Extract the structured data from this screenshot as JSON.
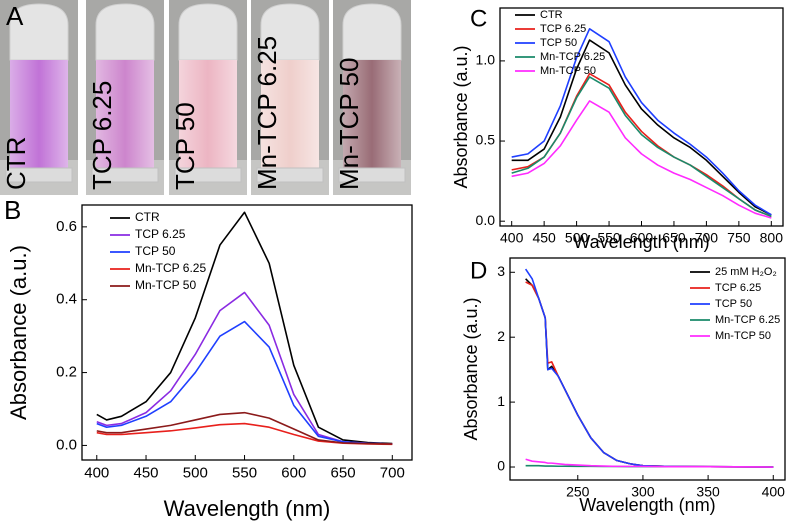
{
  "photo_panel": {
    "label": "A",
    "vials": [
      "CTR",
      "TCP 6.25",
      "TCP 50",
      "Mn-TCP 6.25",
      "Mn-TCP 50"
    ]
  },
  "chart_data": [
    {
      "type": "line",
      "label": "B",
      "x_label": "Wavelength (nm)",
      "y_label": "Absorbance (a.u.)",
      "x": [
        400,
        410,
        425,
        450,
        475,
        500,
        525,
        550,
        575,
        600,
        625,
        650,
        675,
        700
      ],
      "xlim": [
        385,
        720
      ],
      "xticks": [
        400,
        450,
        500,
        550,
        600,
        650,
        700
      ],
      "ylim": [
        -0.04,
        0.66
      ],
      "yticks": [
        {
          "value": 0,
          "label": "0.0"
        },
        0.2,
        0.4,
        0.6
      ],
      "series": [
        {
          "name": "CTR",
          "color": "#000000",
          "values": [
            0.085,
            0.07,
            0.08,
            0.12,
            0.2,
            0.35,
            0.55,
            0.64,
            0.5,
            0.22,
            0.05,
            0.015,
            0.008,
            0.005
          ]
        },
        {
          "name": "TCP 6.25",
          "color": "#8a2be2",
          "values": [
            0.065,
            0.055,
            0.06,
            0.09,
            0.15,
            0.25,
            0.37,
            0.42,
            0.33,
            0.14,
            0.03,
            0.01,
            0.006,
            0.004
          ]
        },
        {
          "name": "TCP 50",
          "color": "#1f3fff",
          "values": [
            0.06,
            0.05,
            0.055,
            0.08,
            0.12,
            0.2,
            0.3,
            0.34,
            0.27,
            0.11,
            0.025,
            0.01,
            0.006,
            0.004
          ]
        },
        {
          "name": "Mn-TCP 6.25",
          "color": "#e8201c",
          "values": [
            0.035,
            0.03,
            0.03,
            0.035,
            0.04,
            0.048,
            0.057,
            0.06,
            0.05,
            0.03,
            0.012,
            0.006,
            0.004,
            0.003
          ]
        },
        {
          "name": "Mn-TCP 50",
          "color": "#8b1a1a",
          "values": [
            0.04,
            0.035,
            0.035,
            0.045,
            0.055,
            0.07,
            0.085,
            0.09,
            0.075,
            0.045,
            0.015,
            0.007,
            0.005,
            0.004
          ]
        }
      ]
    },
    {
      "type": "line",
      "label": "C",
      "x_label": "Wavelength (nm)",
      "y_label": "Absorbance (a.u.)",
      "x": [
        400,
        425,
        450,
        475,
        500,
        520,
        550,
        575,
        600,
        625,
        650,
        675,
        700,
        725,
        750,
        775,
        800
      ],
      "xlim": [
        382,
        818
      ],
      "xticks": [
        400,
        450,
        500,
        550,
        600,
        650,
        700,
        750,
        800
      ],
      "ylim": [
        -0.03,
        1.33
      ],
      "yticks": [
        {
          "value": 0,
          "label": "0.0"
        },
        0.5,
        {
          "value": 1,
          "label": "1.0"
        }
      ],
      "series": [
        {
          "name": "CTR",
          "color": "#000000",
          "values": [
            0.38,
            0.38,
            0.45,
            0.65,
            0.95,
            1.13,
            1.05,
            0.85,
            0.7,
            0.6,
            0.52,
            0.46,
            0.38,
            0.28,
            0.18,
            0.09,
            0.04
          ]
        },
        {
          "name": "TCP 6.25",
          "color": "#e8201c",
          "values": [
            0.32,
            0.34,
            0.4,
            0.55,
            0.78,
            0.92,
            0.85,
            0.68,
            0.56,
            0.47,
            0.4,
            0.35,
            0.29,
            0.22,
            0.14,
            0.07,
            0.03
          ]
        },
        {
          "name": "TCP 50",
          "color": "#1f3fff",
          "values": [
            0.4,
            0.42,
            0.5,
            0.72,
            1.02,
            1.2,
            1.12,
            0.9,
            0.74,
            0.63,
            0.55,
            0.48,
            0.4,
            0.3,
            0.19,
            0.1,
            0.04
          ]
        },
        {
          "name": "Mn-TCP 6.25",
          "color": "#1a8a6a",
          "values": [
            0.3,
            0.33,
            0.4,
            0.55,
            0.77,
            0.9,
            0.83,
            0.66,
            0.54,
            0.46,
            0.4,
            0.35,
            0.28,
            0.21,
            0.14,
            0.07,
            0.03
          ]
        },
        {
          "name": "Mn-TCP 50",
          "color": "#ff2bff",
          "values": [
            0.28,
            0.3,
            0.36,
            0.47,
            0.63,
            0.75,
            0.68,
            0.52,
            0.42,
            0.35,
            0.3,
            0.26,
            0.21,
            0.16,
            0.1,
            0.05,
            0.02
          ]
        }
      ]
    },
    {
      "type": "line",
      "label": "D",
      "x_label": "Wavelength (nm)",
      "y_label": "Absorbance (a.u.)",
      "x": [
        210,
        215,
        220,
        225,
        227,
        230,
        235,
        240,
        250,
        260,
        270,
        280,
        290,
        300,
        320,
        350,
        400
      ],
      "xlim": [
        198,
        409
      ],
      "xticks": [
        250,
        300,
        350,
        400
      ],
      "ylim": [
        -0.2,
        3.22
      ],
      "yticks": [
        0,
        1,
        2,
        3
      ],
      "series": [
        {
          "name": "25 mM H₂O₂",
          "color": "#000000",
          "values": [
            2.9,
            2.8,
            2.6,
            2.3,
            1.5,
            1.55,
            1.4,
            1.2,
            0.8,
            0.45,
            0.22,
            0.1,
            0.05,
            0.02,
            0.01,
            0.005,
            0
          ]
        },
        {
          "name": "TCP 6.25",
          "color": "#e8201c",
          "values": [
            2.85,
            2.8,
            2.6,
            2.3,
            1.6,
            1.62,
            1.4,
            1.2,
            0.8,
            0.45,
            0.22,
            0.1,
            0.05,
            0.02,
            0.01,
            0.005,
            0
          ]
        },
        {
          "name": "TCP 50",
          "color": "#1f3fff",
          "values": [
            3.05,
            2.9,
            2.6,
            2.3,
            1.5,
            1.52,
            1.4,
            1.2,
            0.8,
            0.45,
            0.22,
            0.1,
            0.05,
            0.02,
            0.01,
            0.005,
            0
          ]
        },
        {
          "name": "Mn-TCP 6.25",
          "color": "#1a8a6a",
          "values": [
            0.02,
            0.02,
            0.02,
            0.015,
            0.015,
            0.015,
            0.012,
            0.012,
            0.01,
            0.01,
            0.008,
            0.008,
            0.006,
            0.006,
            0.005,
            0.004,
            0.003
          ]
        },
        {
          "name": "Mn-TCP 50",
          "color": "#ff2bff",
          "values": [
            0.12,
            0.09,
            0.08,
            0.07,
            0.06,
            0.06,
            0.05,
            0.04,
            0.03,
            0.02,
            0.015,
            0.01,
            0.01,
            0.01,
            0.005,
            0.005,
            0
          ]
        }
      ]
    }
  ]
}
